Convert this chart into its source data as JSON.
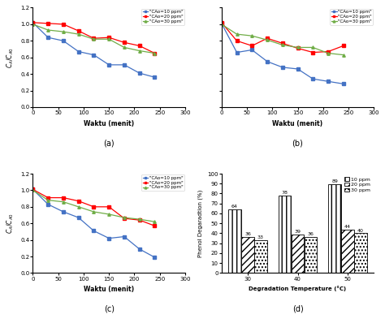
{
  "subplot_a": {
    "x": [
      0,
      30,
      60,
      90,
      120,
      150,
      180,
      210,
      240
    ],
    "blue": [
      1.02,
      0.84,
      0.8,
      0.67,
      0.63,
      0.51,
      0.51,
      0.41,
      0.36
    ],
    "red": [
      1.02,
      1.01,
      1.0,
      0.92,
      0.83,
      0.84,
      0.78,
      0.74,
      0.65
    ],
    "green": [
      1.0,
      0.93,
      0.91,
      0.88,
      0.82,
      0.82,
      0.72,
      0.68,
      0.65
    ]
  },
  "subplot_b": {
    "x": [
      0,
      30,
      60,
      90,
      120,
      150,
      180,
      210,
      240
    ],
    "blue": [
      1.01,
      0.66,
      0.69,
      0.55,
      0.48,
      0.46,
      0.34,
      0.31,
      0.28
    ],
    "red": [
      1.02,
      0.8,
      0.74,
      0.83,
      0.77,
      0.71,
      0.66,
      0.67,
      0.74
    ],
    "green": [
      1.0,
      0.88,
      0.86,
      0.81,
      0.75,
      0.72,
      0.72,
      0.65,
      0.63
    ]
  },
  "subplot_c": {
    "x": [
      0,
      30,
      60,
      90,
      120,
      150,
      180,
      210,
      240
    ],
    "blue": [
      1.01,
      0.83,
      0.74,
      0.67,
      0.51,
      0.42,
      0.44,
      0.29,
      0.19
    ],
    "red": [
      1.01,
      0.91,
      0.91,
      0.87,
      0.8,
      0.8,
      0.66,
      0.64,
      0.57
    ],
    "green": [
      1.0,
      0.88,
      0.86,
      0.8,
      0.74,
      0.71,
      0.67,
      0.65,
      0.62
    ]
  },
  "subplot_d": {
    "temps": [
      "30",
      "40",
      "50"
    ],
    "ppm10": [
      64,
      78,
      89
    ],
    "ppm20": [
      36,
      39,
      44
    ],
    "ppm30": [
      33,
      36,
      40
    ]
  },
  "colors": {
    "blue": "#4472C4",
    "red": "#FF0000",
    "green": "#70AD47"
  },
  "legend_labels": [
    "\"CAo=10 ppm\"",
    "\"CAo=20 ppm\"",
    "\"CAo=30 ppm\""
  ],
  "bar_legend_labels": [
    "10 ppm",
    "20 ppm",
    "30 ppm"
  ],
  "xlabel": "Waktu (menit)",
  "xlim": [
    0,
    300
  ],
  "ylim": [
    0,
    1.2
  ],
  "xticks": [
    0,
    50,
    100,
    150,
    200,
    250,
    300
  ],
  "yticks": [
    0,
    0.2,
    0.4,
    0.6,
    0.8,
    1.0,
    1.2
  ]
}
